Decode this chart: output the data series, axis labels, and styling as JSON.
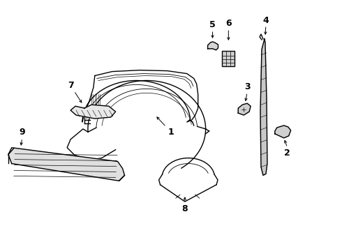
{
  "background_color": "#ffffff",
  "line_color": "#000000",
  "figsize": [
    4.9,
    3.6
  ],
  "dpi": 100,
  "label_fontsize": 9,
  "lw_main": 1.0,
  "lw_thin": 0.6
}
